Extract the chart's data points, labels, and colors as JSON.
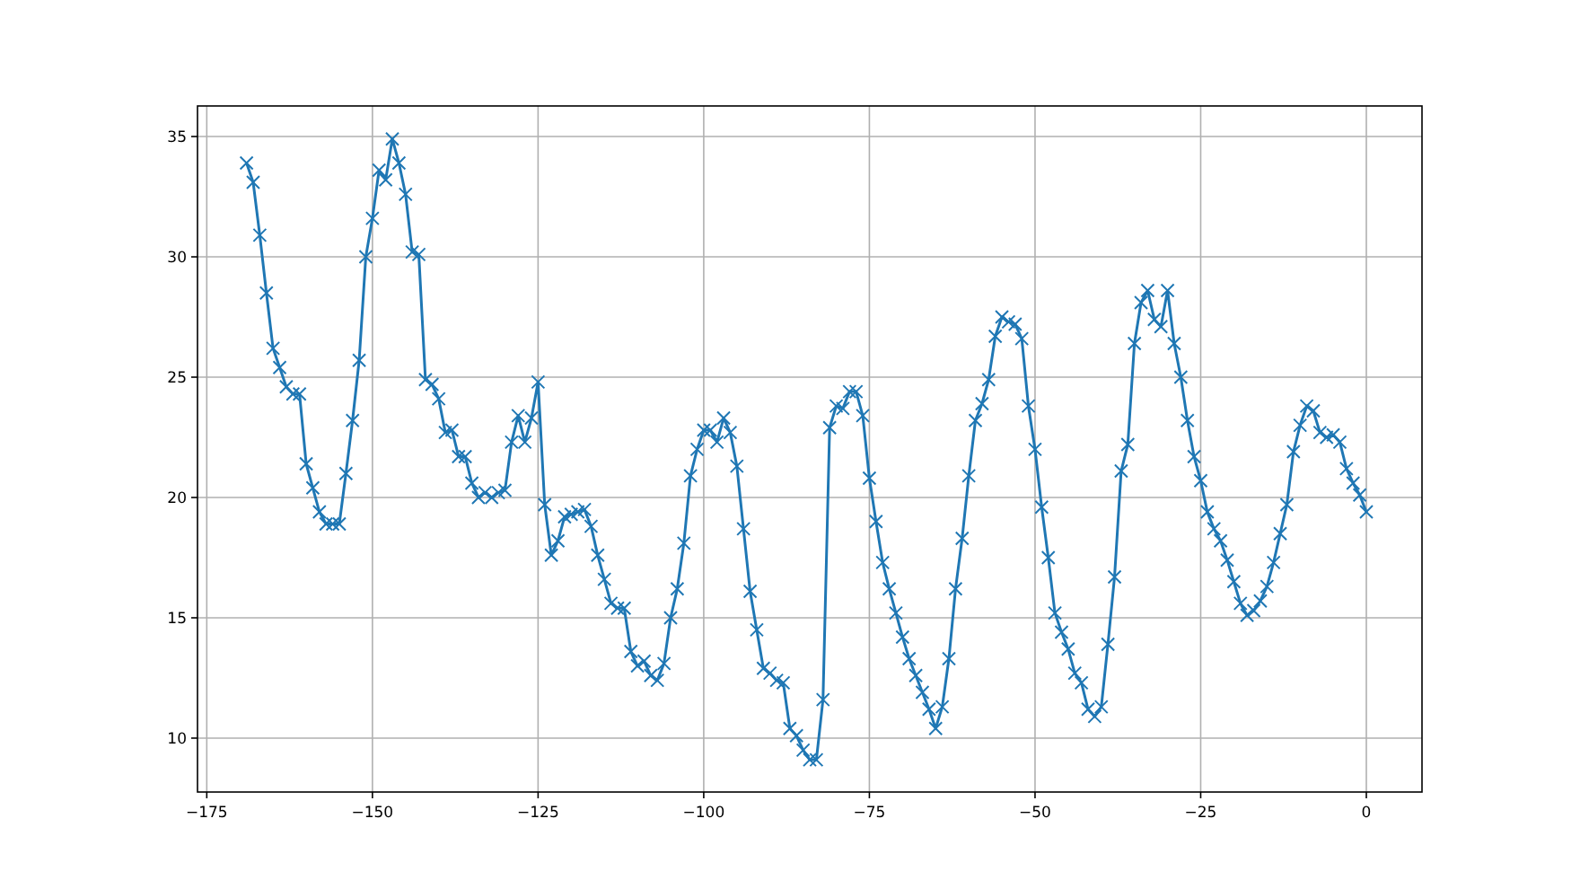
{
  "chart_data": {
    "type": "line",
    "marker": "cross",
    "line_style": "solid",
    "grid": true,
    "xlim": [
      -176.4,
      8.4
    ],
    "ylim": [
      7.76,
      36.27
    ],
    "xticks": [
      -175,
      -150,
      -125,
      -100,
      -75,
      -50,
      -25,
      0
    ],
    "yticks": [
      10,
      15,
      20,
      25,
      30,
      35
    ],
    "x": [
      -169,
      -168,
      -167,
      -166,
      -165,
      -164,
      -163,
      -162,
      -161,
      -160,
      -159,
      -158,
      -157,
      -156,
      -155,
      -154,
      -153,
      -152,
      -151,
      -150,
      -149,
      -148,
      -147,
      -146,
      -145,
      -144,
      -143,
      -142,
      -141,
      -140,
      -139,
      -138,
      -137,
      -136,
      -135,
      -134,
      -133,
      -132,
      -131,
      -130,
      -129,
      -128,
      -127,
      -126,
      -125,
      -124,
      -123,
      -122,
      -121,
      -120,
      -119,
      -118,
      -117,
      -116,
      -115,
      -114,
      -113,
      -112,
      -111,
      -110,
      -109,
      -108,
      -107,
      -106,
      -105,
      -104,
      -103,
      -102,
      -101,
      -100,
      -99,
      -98,
      -97,
      -96,
      -95,
      -94,
      -93,
      -92,
      -91,
      -90,
      -89,
      -88,
      -87,
      -86,
      -85,
      -84,
      -83,
      -82,
      -81,
      -80,
      -79,
      -78,
      -77,
      -76,
      -75,
      -74,
      -73,
      -72,
      -71,
      -70,
      -69,
      -68,
      -67,
      -66,
      -65,
      -64,
      -63,
      -62,
      -61,
      -60,
      -59,
      -58,
      -57,
      -56,
      -55,
      -54,
      -53,
      -52,
      -51,
      -50,
      -49,
      -48,
      -47,
      -46,
      -45,
      -44,
      -43,
      -42,
      -41,
      -40,
      -39,
      -38,
      -37,
      -36,
      -35,
      -34,
      -33,
      -32,
      -31,
      -30,
      -29,
      -28,
      -27,
      -26,
      -25,
      -24,
      -23,
      -22,
      -21,
      -20,
      -19,
      -18,
      -17,
      -16,
      -15,
      -14,
      -13,
      -12,
      -11,
      -10,
      -9,
      -8,
      -7,
      -6,
      -5,
      -4,
      -3,
      -2,
      -1,
      0
    ],
    "series": [
      {
        "color": "#1f77b4",
        "values": [
          33.9,
          33.1,
          30.9,
          28.5,
          26.2,
          25.4,
          24.6,
          24.3,
          24.3,
          21.4,
          20.4,
          19.4,
          18.9,
          18.9,
          18.9,
          21.0,
          23.2,
          25.7,
          30.0,
          31.6,
          33.6,
          33.2,
          34.9,
          33.9,
          32.6,
          30.2,
          30.1,
          24.9,
          24.7,
          24.1,
          22.7,
          22.8,
          21.7,
          21.7,
          20.6,
          20.0,
          20.2,
          20.0,
          20.2,
          20.3,
          22.3,
          23.4,
          22.3,
          23.3,
          24.8,
          19.7,
          17.6,
          18.2,
          19.2,
          19.3,
          19.4,
          19.5,
          18.8,
          17.6,
          16.6,
          15.6,
          15.4,
          15.4,
          13.6,
          13.0,
          13.2,
          12.6,
          12.4,
          13.1,
          15.0,
          16.2,
          18.1,
          20.9,
          22.0,
          22.8,
          22.8,
          22.3,
          23.3,
          22.7,
          21.3,
          18.7,
          16.1,
          14.5,
          12.9,
          12.7,
          12.4,
          12.3,
          10.4,
          10.1,
          9.5,
          9.1,
          9.1,
          11.6,
          22.9,
          23.8,
          23.7,
          24.4,
          24.4,
          23.4,
          20.8,
          19.0,
          17.3,
          16.2,
          15.2,
          14.2,
          13.3,
          12.6,
          11.9,
          11.2,
          10.4,
          11.3,
          13.3,
          16.2,
          18.3,
          20.9,
          23.2,
          23.9,
          24.9,
          26.7,
          27.5,
          27.3,
          27.2,
          26.6,
          23.8,
          22.0,
          19.6,
          17.5,
          15.2,
          14.4,
          13.7,
          12.7,
          12.3,
          11.2,
          10.9,
          11.3,
          13.9,
          16.7,
          21.1,
          22.2,
          26.4,
          28.1,
          28.6,
          27.4,
          27.1,
          28.6,
          26.4,
          25.0,
          23.2,
          21.7,
          20.7,
          19.4,
          18.7,
          18.2,
          17.4,
          16.5,
          15.6,
          15.1,
          15.3,
          15.7,
          16.3,
          17.3,
          18.5,
          19.7,
          21.9,
          23.0,
          23.8,
          23.6,
          22.7,
          22.5,
          22.6,
          22.3,
          21.2,
          20.6,
          20.1,
          19.4
        ]
      }
    ]
  }
}
